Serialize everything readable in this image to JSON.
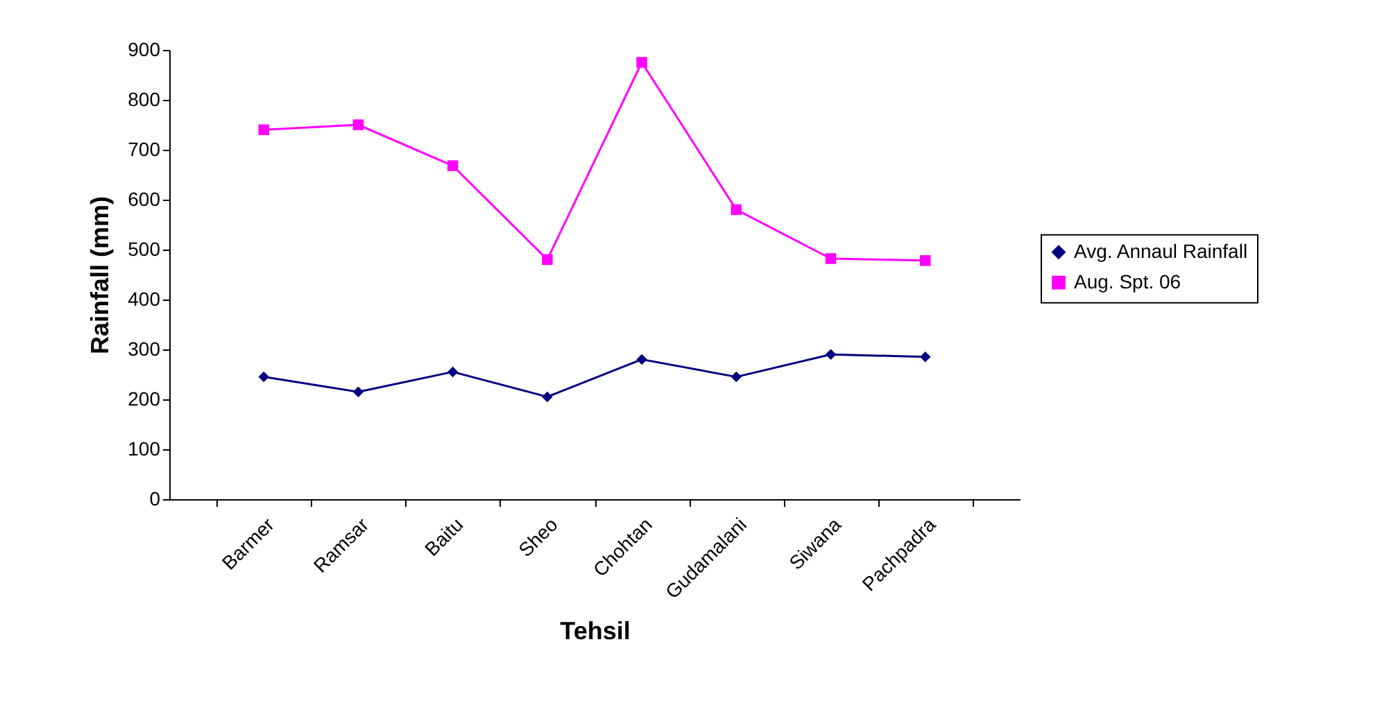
{
  "chart_data": {
    "type": "line",
    "xlabel": "Tehsil",
    "ylabel": "Rainfall (mm)",
    "categories": [
      "Barmer",
      "Ramsar",
      "Baitu",
      "Sheo",
      "Chohtan",
      "Gudamalani",
      "Siwana",
      "Pachpadra"
    ],
    "ylim": [
      0,
      900
    ],
    "yticks": [
      0,
      100,
      200,
      300,
      400,
      500,
      600,
      700,
      800,
      900
    ],
    "legend": "right",
    "series": [
      {
        "name": "Avg. Annaul Rainfall",
        "color": "#000080",
        "marker": "diamond",
        "values": [
          245,
          215,
          255,
          205,
          280,
          245,
          290,
          285
        ]
      },
      {
        "name": "Aug. Spt. 06",
        "color": "#ff00ff",
        "marker": "square",
        "values": [
          740,
          750,
          668,
          480,
          875,
          580,
          482,
          478
        ]
      }
    ]
  }
}
